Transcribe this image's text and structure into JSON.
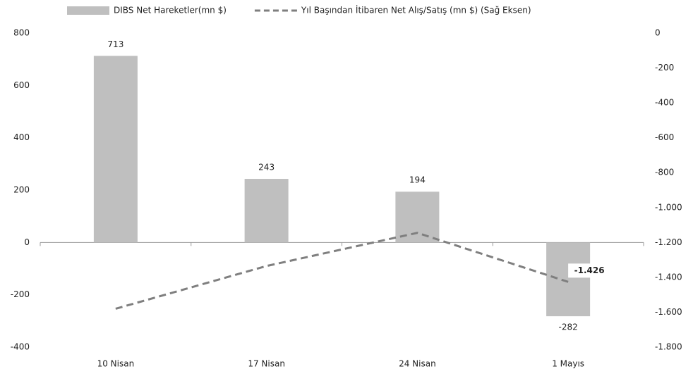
{
  "chart_data": {
    "type": "bar",
    "categories": [
      "10 Nisan",
      "17 Nisan",
      "24 Nisan",
      "1 Mayıs"
    ],
    "series": [
      {
        "name": "DIBS Net Hareketler(mn $)",
        "type": "bar",
        "color": "#bfbfbf",
        "values": [
          713,
          243,
          194,
          -282
        ]
      },
      {
        "name": "Yıl Başından İtibaren Net Alış/Satış (mn $) (Sağ Eksen)",
        "type": "line",
        "axis": "y2",
        "color": "#7f7f7f",
        "dashed": true,
        "values": [
          -1580,
          -1335,
          -1145,
          -1426
        ],
        "value_labels": [
          null,
          null,
          null,
          "-1.426"
        ]
      }
    ],
    "ylim": [
      -400,
      800
    ],
    "yticks": [
      -400,
      -200,
      0,
      200,
      400,
      600,
      800
    ],
    "y2lim": [
      -1800,
      0
    ],
    "y2ticks": [
      {
        "value": -1800,
        "label": "-1.800"
      },
      {
        "value": -1600,
        "label": "-1.600"
      },
      {
        "value": -1400,
        "label": "-1.400"
      },
      {
        "value": -1200,
        "label": "-1.200"
      },
      {
        "value": -1000,
        "label": "-1.000"
      },
      -800,
      -600,
      -400,
      -200,
      0
    ],
    "grid": false,
    "legend": "top"
  }
}
